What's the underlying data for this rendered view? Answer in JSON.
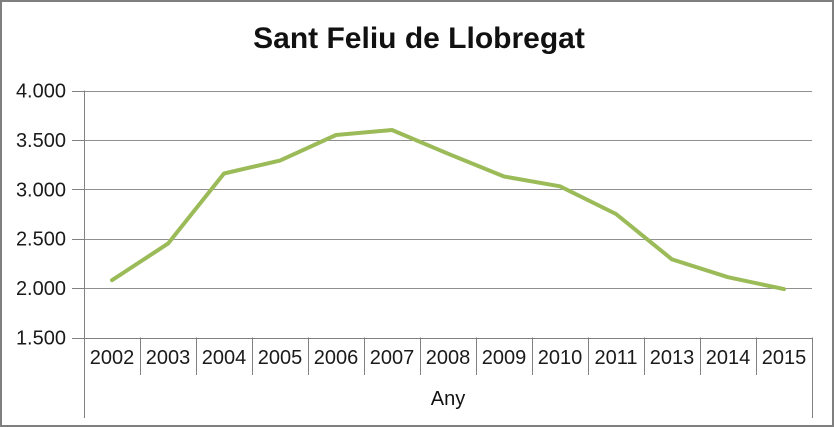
{
  "window": {
    "background": "#ffffff",
    "border_color": "#7f7f7f"
  },
  "chart_data": {
    "type": "line",
    "title": "Sant Feliu de Llobregat",
    "xlabel": "Any",
    "ylabel": "",
    "categories": [
      "2002",
      "2003",
      "2004",
      "2005",
      "2006",
      "2007",
      "2008",
      "2009",
      "2010",
      "2011",
      "2013",
      "2014",
      "2015"
    ],
    "values": [
      2080,
      2450,
      3160,
      3290,
      3550,
      3600,
      3360,
      3130,
      3030,
      2750,
      2290,
      2110,
      1990
    ],
    "ylim": [
      1500,
      4000
    ],
    "ytick_interval": 500,
    "ytick_labels": [
      "1.500",
      "2.000",
      "2.500",
      "3.000",
      "3.500",
      "4.000"
    ],
    "grid": true,
    "legend": false,
    "line_color": "#9BBB59",
    "line_width": 4,
    "gridline_color": "#909090",
    "axis_color": "#808080",
    "tick_label_color": "#1a1a1a"
  }
}
